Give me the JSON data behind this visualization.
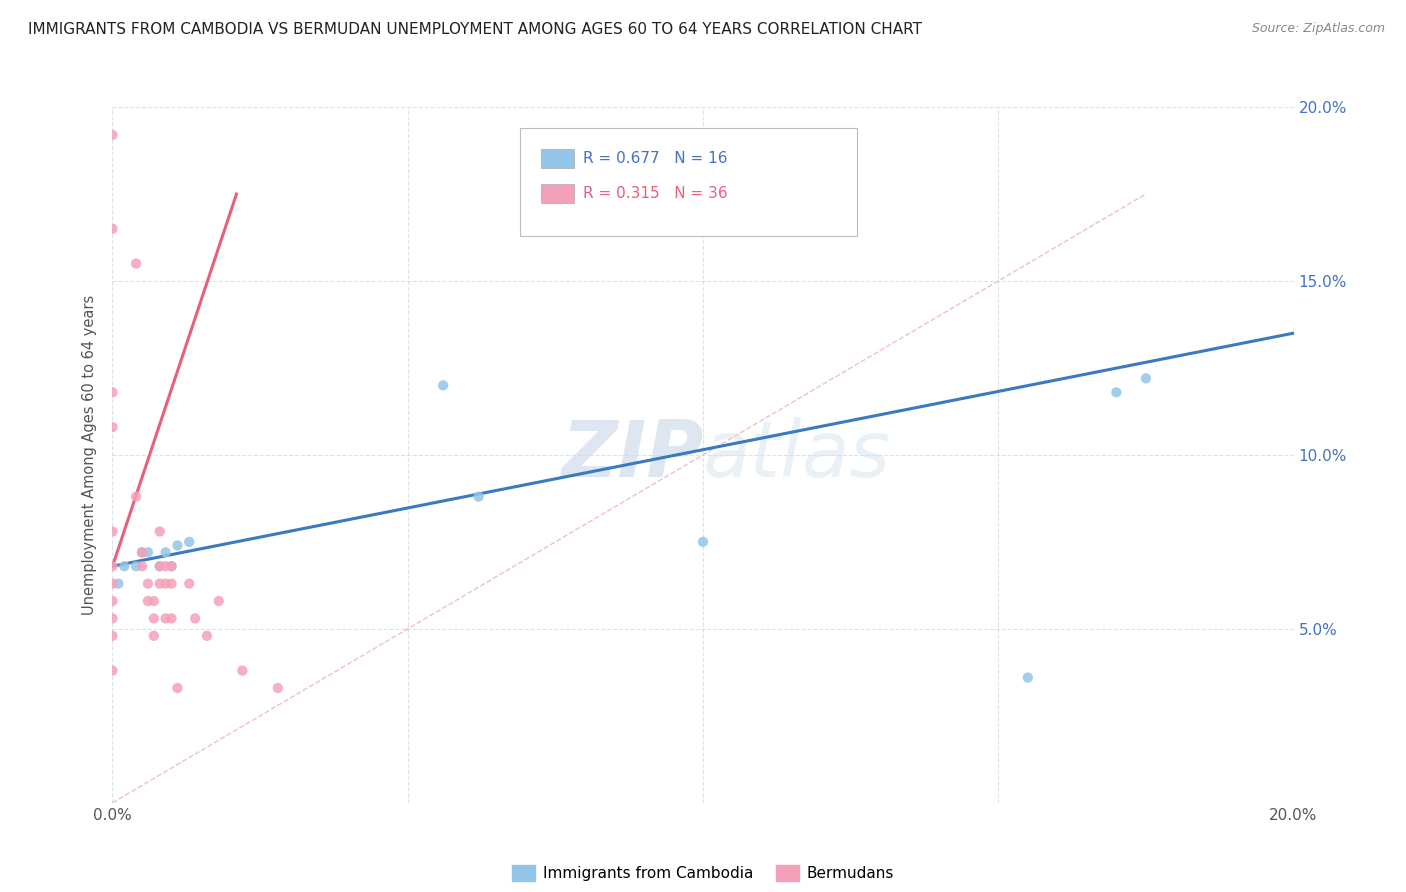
{
  "title": "IMMIGRANTS FROM CAMBODIA VS BERMUDAN UNEMPLOYMENT AMONG AGES 60 TO 64 YEARS CORRELATION CHART",
  "source": "Source: ZipAtlas.com",
  "ylabel": "Unemployment Among Ages 60 to 64 years",
  "xlim": [
    0.0,
    0.2
  ],
  "ylim": [
    0.0,
    0.2
  ],
  "x_ticks": [
    0.0,
    0.05,
    0.1,
    0.15,
    0.2
  ],
  "y_ticks": [
    0.0,
    0.05,
    0.1,
    0.15,
    0.2
  ],
  "legend_labels": [
    "Immigrants from Cambodia",
    "Bermudans"
  ],
  "watermark_zip": "ZIP",
  "watermark_atlas": "atlas",
  "blue_color": "#92c5e8",
  "pink_color": "#f4a0b8",
  "blue_line_color": "#3a7abf",
  "pink_line_color": "#e8607a",
  "diag_line_color": "#e8b0c0",
  "legend_R_blue": "R = 0.677",
  "legend_N_blue": "N = 16",
  "legend_R_pink": "R = 0.315",
  "legend_N_pink": "N = 36",
  "blue_points_x": [
    0.001,
    0.002,
    0.004,
    0.005,
    0.006,
    0.008,
    0.009,
    0.01,
    0.011,
    0.013,
    0.056,
    0.062,
    0.1,
    0.155,
    0.17,
    0.175
  ],
  "blue_points_y": [
    0.063,
    0.068,
    0.068,
    0.072,
    0.072,
    0.068,
    0.072,
    0.068,
    0.074,
    0.075,
    0.12,
    0.088,
    0.075,
    0.036,
    0.118,
    0.122
  ],
  "pink_points_x": [
    0.0,
    0.0,
    0.0,
    0.0,
    0.0,
    0.0,
    0.0,
    0.0,
    0.0,
    0.0,
    0.0,
    0.004,
    0.004,
    0.005,
    0.005,
    0.006,
    0.006,
    0.007,
    0.007,
    0.007,
    0.008,
    0.008,
    0.008,
    0.009,
    0.009,
    0.009,
    0.01,
    0.01,
    0.01,
    0.011,
    0.013,
    0.014,
    0.016,
    0.018,
    0.022,
    0.028
  ],
  "pink_points_y": [
    0.192,
    0.165,
    0.118,
    0.108,
    0.078,
    0.068,
    0.063,
    0.058,
    0.053,
    0.048,
    0.038,
    0.155,
    0.088,
    0.072,
    0.068,
    0.063,
    0.058,
    0.053,
    0.048,
    0.058,
    0.078,
    0.068,
    0.063,
    0.068,
    0.063,
    0.053,
    0.068,
    0.063,
    0.053,
    0.033,
    0.063,
    0.053,
    0.048,
    0.058,
    0.038,
    0.033
  ],
  "blue_trendline_x": [
    0.0,
    0.2
  ],
  "blue_trendline_y": [
    0.068,
    0.135
  ],
  "pink_trendline_x": [
    0.0,
    0.021
  ],
  "pink_trendline_y": [
    0.068,
    0.175
  ],
  "diag_line_x": [
    0.0,
    0.175
  ],
  "diag_line_y": [
    0.0,
    0.175
  ]
}
